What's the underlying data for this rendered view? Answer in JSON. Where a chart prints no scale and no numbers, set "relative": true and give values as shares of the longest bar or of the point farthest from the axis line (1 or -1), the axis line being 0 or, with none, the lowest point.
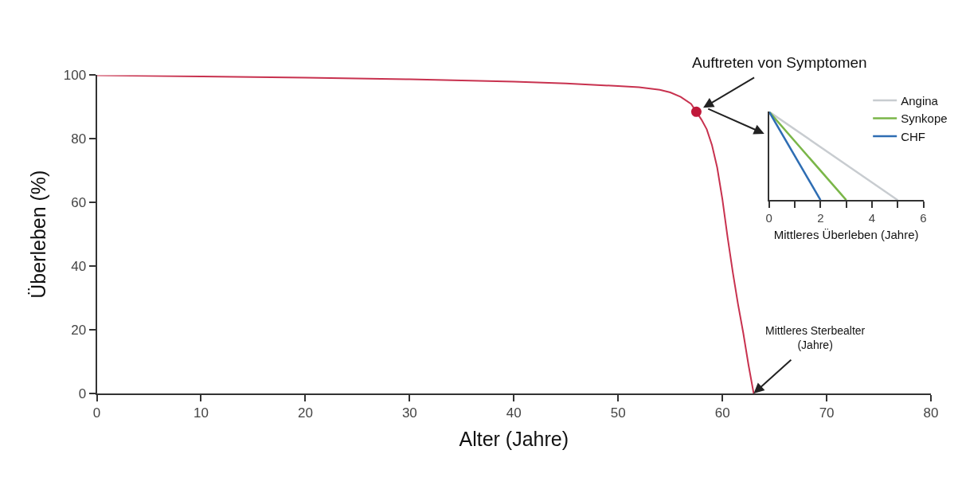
{
  "chart_data": [
    {
      "type": "line",
      "xlabel": "Alter (Jahre)",
      "ylabel": "Überleben (%)",
      "xlim": [
        0,
        80
      ],
      "ylim": [
        0,
        100
      ],
      "xticks": [
        0,
        10,
        20,
        30,
        40,
        50,
        60,
        70,
        80
      ],
      "yticks": [
        0,
        20,
        40,
        60,
        80,
        100
      ],
      "grid": false,
      "legend": false,
      "series": [
        {
          "color": "#c8324f",
          "marker": "none",
          "x": [
            0,
            10,
            20,
            30,
            40,
            45,
            50,
            52,
            54,
            55,
            56,
            57,
            57.5,
            58,
            58.5,
            59,
            59.5,
            60,
            60.5,
            61,
            61.5,
            62,
            62.5,
            63
          ],
          "values": [
            100,
            99.6,
            99.2,
            98.7,
            98,
            97.4,
            96.6,
            96.2,
            95.4,
            94.6,
            93.2,
            91,
            88.5,
            86,
            83,
            78,
            71,
            61,
            49,
            38,
            28,
            19,
            9,
            0
          ]
        },
        {
          "type": "scatter",
          "color": "#c0183a",
          "marker": "circle",
          "x": [
            57.5
          ],
          "values": [
            88.5
          ]
        }
      ],
      "annotations": [
        {
          "text": "Auftreten von Symptomen",
          "x": 57.5,
          "y": 88.5
        },
        {
          "text": "Mittleres Sterbealter\n(Jahre)",
          "x": 63,
          "y": 0
        }
      ]
    },
    {
      "type": "line",
      "relative": true,
      "xlabel": "Mittleres Überleben (Jahre)",
      "xlim": [
        0,
        6
      ],
      "xticks": [
        0,
        {
          "value": 1,
          "label": null
        },
        2,
        {
          "value": 3,
          "label": null
        },
        4,
        {
          "value": 5,
          "label": null
        },
        6
      ],
      "tick_labels": "x",
      "grid": false,
      "legend": "top right",
      "marker": "none",
      "series": [
        {
          "name": "Angina",
          "color": "#c8ccd0",
          "x": [
            0,
            5
          ],
          "values": [
            1,
            0
          ]
        },
        {
          "name": "Synkope",
          "color": "#7ab648",
          "x": [
            0,
            3
          ],
          "values": [
            1,
            0
          ]
        },
        {
          "name": "CHF",
          "color": "#2e6db3",
          "x": [
            0,
            2
          ],
          "values": [
            1,
            0
          ]
        }
      ]
    }
  ]
}
